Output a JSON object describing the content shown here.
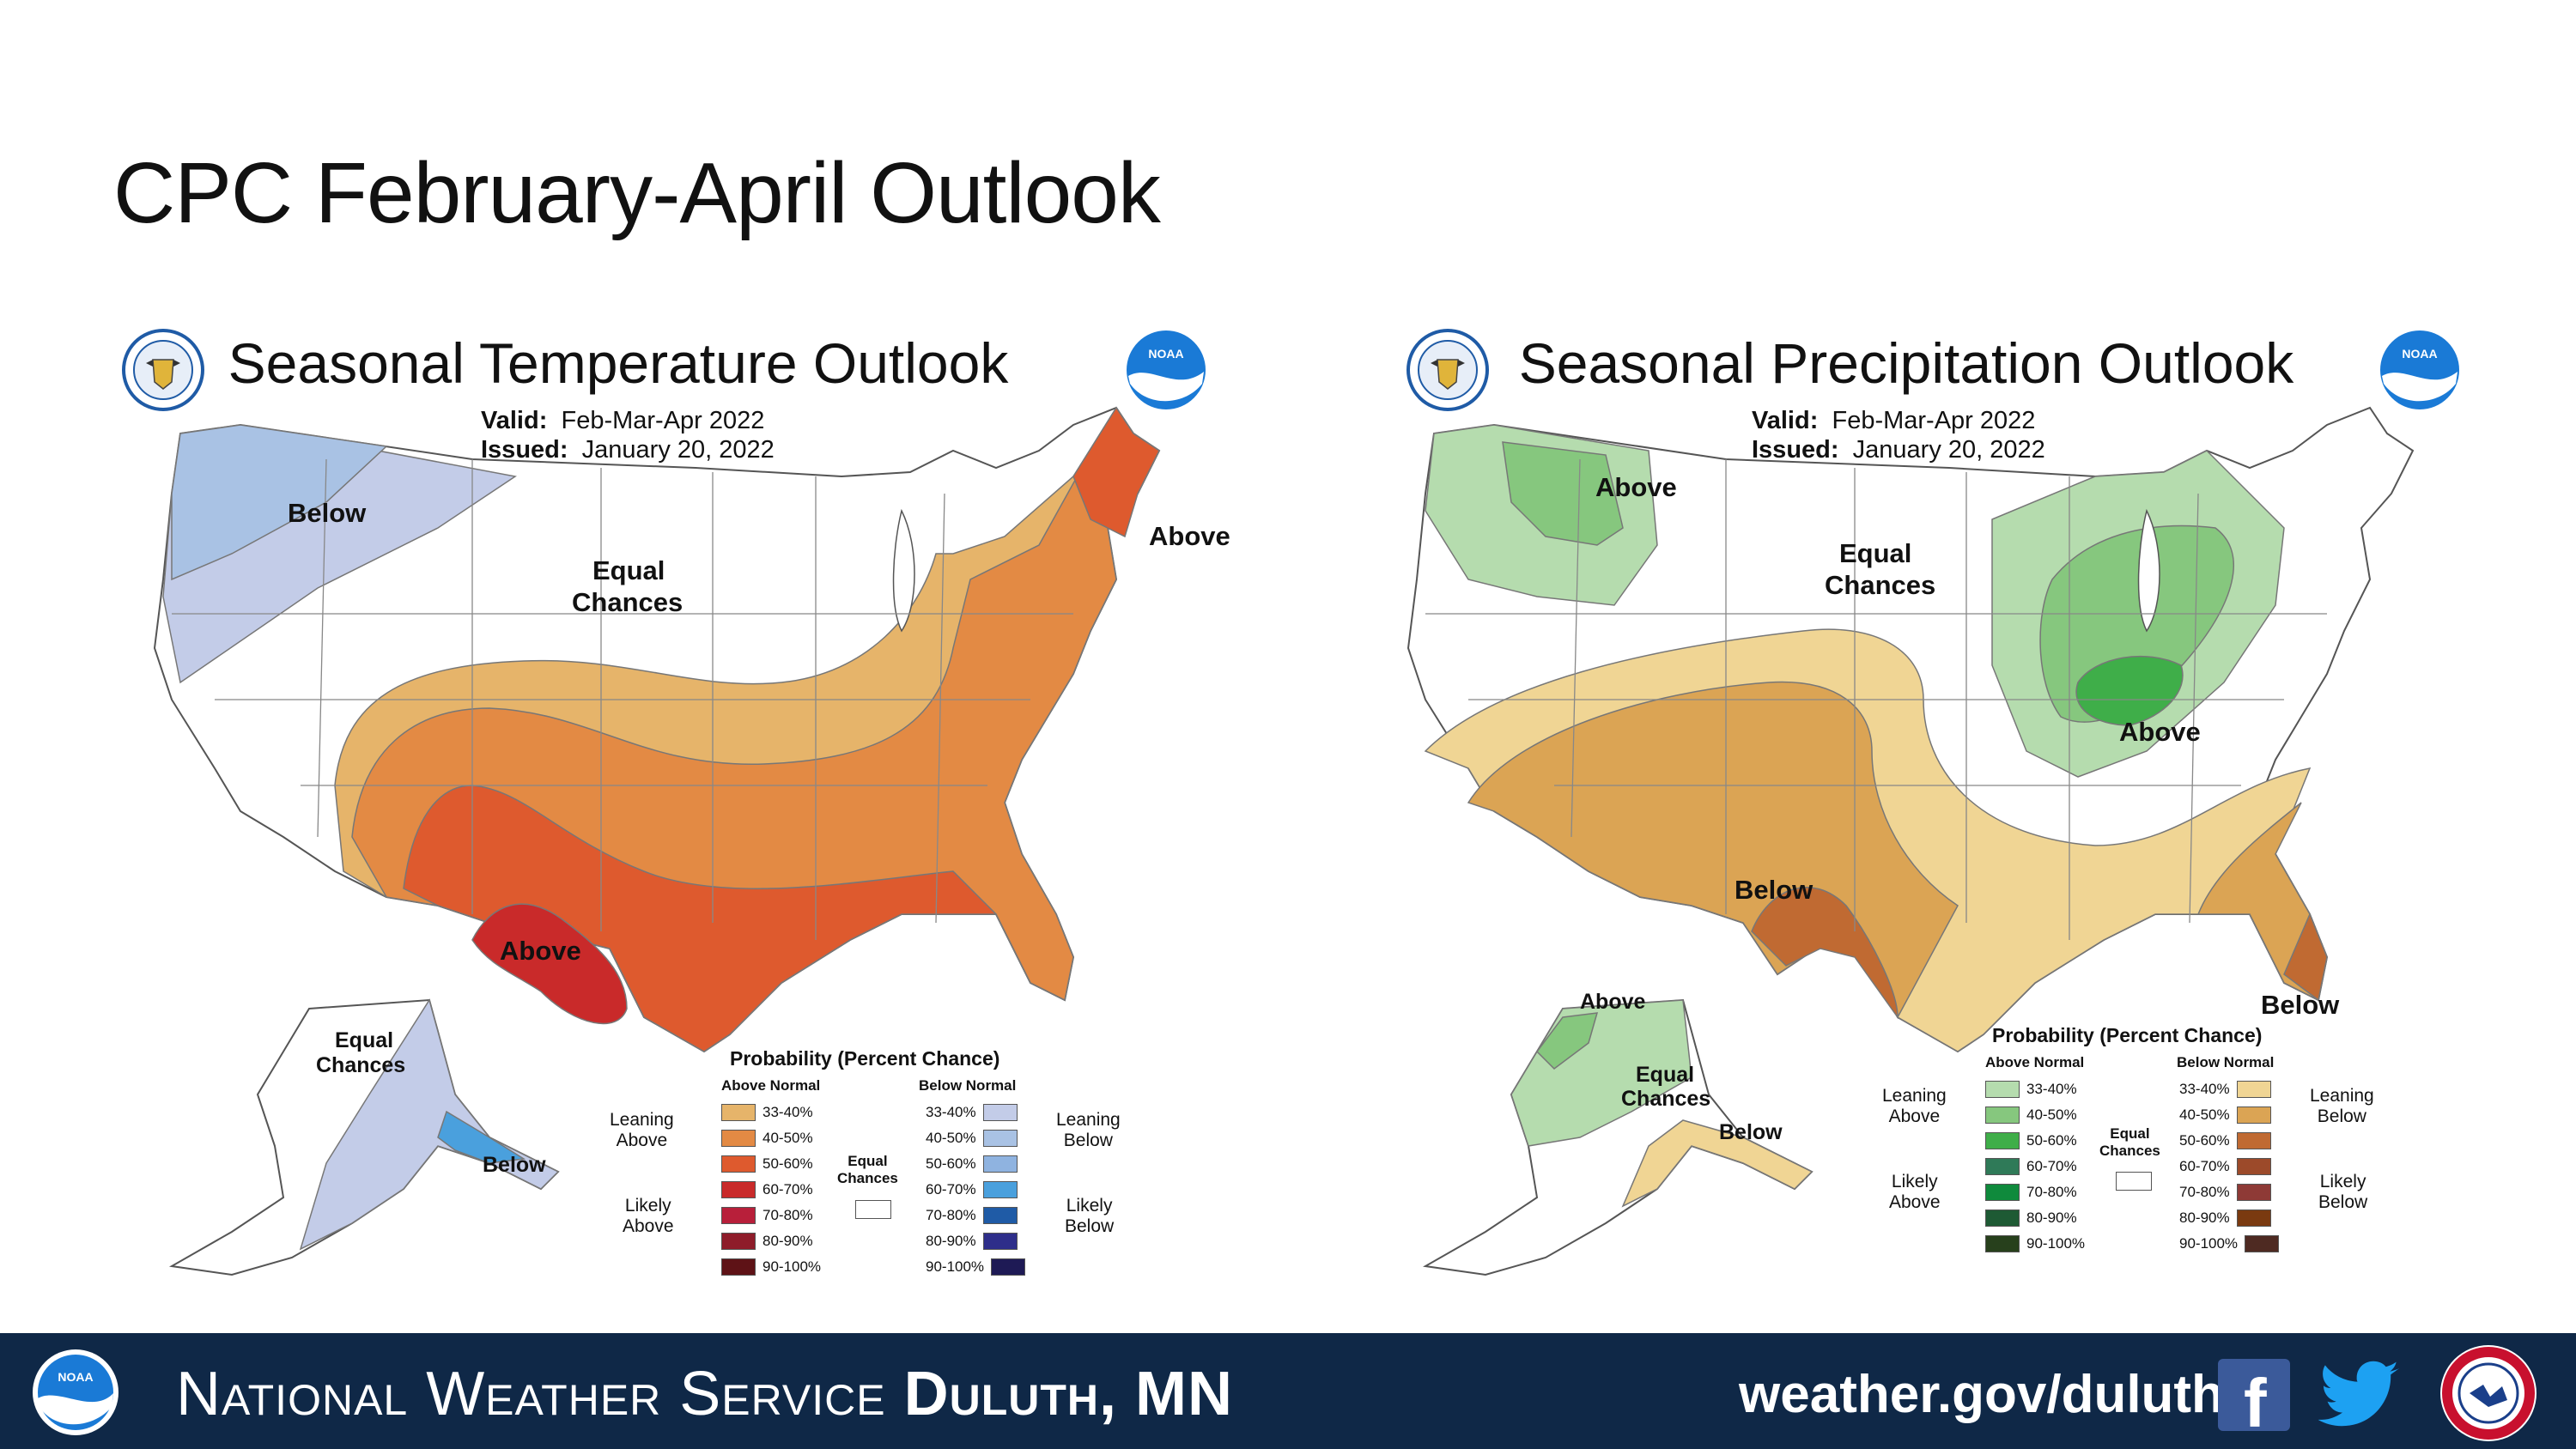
{
  "slide": {
    "title": "CPC February-April Outlook"
  },
  "temperature": {
    "title": "Seasonal Temperature Outlook",
    "valid_label": "Valid:",
    "valid_value": "Feb-Mar-Apr 2022",
    "issued_label": "Issued:",
    "issued_value": "January 20, 2022",
    "map_labels": {
      "below_nw": "Below",
      "equal": "Equal",
      "chances": "Chances",
      "above_ne": "Above",
      "above_tx": "Above",
      "ak_equal": "Equal",
      "ak_chances": "Chances",
      "ak_below": "Below"
    },
    "legend": {
      "title": "Probability (Percent Chance)",
      "above_header": "Above Normal",
      "below_header": "Below Normal",
      "leaning_above_1": "Leaning",
      "leaning_above_2": "Above",
      "likely_above_1": "Likely",
      "likely_above_2": "Above",
      "leaning_below_1": "Leaning",
      "leaning_below_2": "Below",
      "likely_below_1": "Likely",
      "likely_below_2": "Below",
      "equal_1": "Equal",
      "equal_2": "Chances",
      "above_rows": [
        {
          "label": "33-40%",
          "color": "#e6b46a"
        },
        {
          "label": "40-50%",
          "color": "#e38a44"
        },
        {
          "label": "50-60%",
          "color": "#de5a2e"
        },
        {
          "label": "60-70%",
          "color": "#c92a2a"
        },
        {
          "label": "70-80%",
          "color": "#b81f3a"
        },
        {
          "label": "80-90%",
          "color": "#8e1c2a"
        },
        {
          "label": "90-100%",
          "color": "#5e1216"
        }
      ],
      "below_rows": [
        {
          "label": "33-40%",
          "color": "#c3cce8"
        },
        {
          "label": "40-50%",
          "color": "#a9c2e4"
        },
        {
          "label": "50-60%",
          "color": "#8fb3e0"
        },
        {
          "label": "60-70%",
          "color": "#4aa0dd"
        },
        {
          "label": "70-80%",
          "color": "#1f5ba6"
        },
        {
          "label": "80-90%",
          "color": "#2e2e8a"
        },
        {
          "label": "90-100%",
          "color": "#1e1a55"
        }
      ]
    }
  },
  "precipitation": {
    "title": "Seasonal Precipitation Outlook",
    "valid_label": "Valid:",
    "valid_value": "Feb-Mar-Apr 2022",
    "issued_label": "Issued:",
    "issued_value": "January 20, 2022",
    "map_labels": {
      "above_nw": "Above",
      "equal": "Equal",
      "chances": "Chances",
      "above_ov": "Above",
      "below_sw": "Below",
      "below_se": "Below",
      "ak_above": "Above",
      "ak_equal": "Equal",
      "ak_chances": "Chances",
      "ak_below": "Below"
    },
    "legend": {
      "title": "Probability (Percent Chance)",
      "above_header": "Above Normal",
      "below_header": "Below Normal",
      "leaning_above_1": "Leaning",
      "leaning_above_2": "Above",
      "likely_above_1": "Likely",
      "likely_above_2": "Above",
      "leaning_below_1": "Leaning",
      "leaning_below_2": "Below",
      "likely_below_1": "Likely",
      "likely_below_2": "Below",
      "equal_1": "Equal",
      "equal_2": "Chances",
      "above_rows": [
        {
          "label": "33-40%",
          "color": "#b5dcae"
        },
        {
          "label": "40-50%",
          "color": "#86c77e"
        },
        {
          "label": "50-60%",
          "color": "#3fae49"
        },
        {
          "label": "60-70%",
          "color": "#2f7a58"
        },
        {
          "label": "70-80%",
          "color": "#0f8a3c"
        },
        {
          "label": "80-90%",
          "color": "#1e5a34"
        },
        {
          "label": "90-100%",
          "color": "#27401c"
        }
      ],
      "below_rows": [
        {
          "label": "33-40%",
          "color": "#f0d594"
        },
        {
          "label": "40-50%",
          "color": "#dba454"
        },
        {
          "label": "50-60%",
          "color": "#c06a32"
        },
        {
          "label": "60-70%",
          "color": "#9c4a2a"
        },
        {
          "label": "70-80%",
          "color": "#8e3a36"
        },
        {
          "label": "80-90%",
          "color": "#7a3a10"
        },
        {
          "label": "90-100%",
          "color": "#4e2a22"
        }
      ]
    }
  },
  "footer": {
    "org": "National Weather Service",
    "city": "Duluth, MN",
    "url": "weather.gov/duluth",
    "facebook_icon": "facebook-icon",
    "twitter_icon": "twitter-icon"
  }
}
